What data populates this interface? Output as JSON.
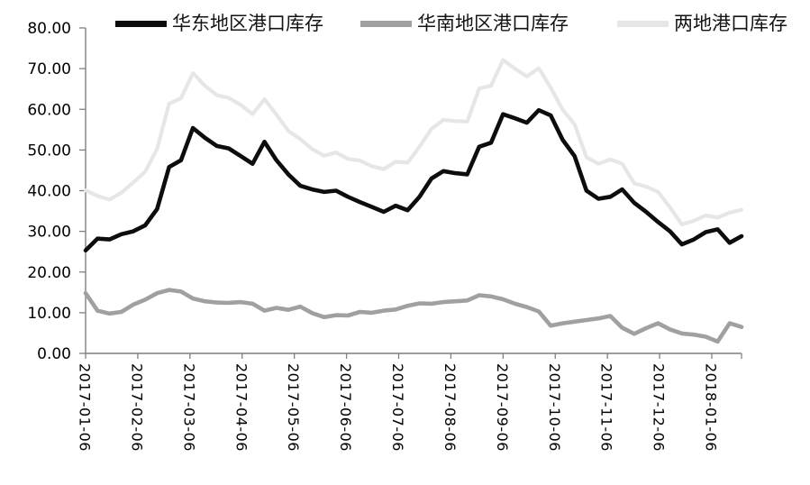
{
  "chart_data": {
    "type": "line",
    "title": "",
    "legend_position": "top",
    "grid": false,
    "axis_color": "#7f7f7f",
    "ylim": [
      0,
      80
    ],
    "y_ticks": [
      0,
      10,
      20,
      30,
      40,
      50,
      60,
      70,
      80
    ],
    "y_tick_decimals": 2,
    "x_labels": [
      "2017-01-06",
      "2017-02-06",
      "2017-03-06",
      "2017-04-06",
      "2017-05-06",
      "2017-06-06",
      "2017-07-06",
      "2017-08-06",
      "2017-09-06",
      "2017-10-06",
      "2017-11-06",
      "2017-12-06",
      "2018-01-06"
    ],
    "x_label_rotation_deg": 90,
    "series": [
      {
        "id": "east-china-inventory",
        "name": "华东地区港口库存",
        "color": "#0d0d0d",
        "line_width": 4.6,
        "values": [
          25.3,
          28.2,
          28.0,
          29.3,
          30.0,
          31.5,
          35.5,
          45.8,
          47.5,
          55.4,
          53.0,
          51.0,
          50.4,
          48.5,
          46.6,
          52.0,
          47.5,
          44.0,
          41.2,
          40.3,
          39.7,
          40.0,
          38.5,
          37.2,
          36.0,
          34.8,
          36.3,
          35.2,
          38.5,
          43.0,
          44.8,
          44.3,
          44.0,
          50.8,
          51.8,
          58.8,
          57.8,
          56.7,
          59.8,
          58.5,
          52.5,
          48.5,
          40.0,
          38.0,
          38.5,
          40.3,
          37.0,
          34.8,
          32.3,
          30.0,
          26.8,
          28.0,
          29.8,
          30.5,
          27.2,
          28.8
        ]
      },
      {
        "id": "south-china-inventory",
        "name": "华南地区港口库存",
        "color": "#a0a0a0",
        "line_width": 4.6,
        "values": [
          14.8,
          10.5,
          9.8,
          10.2,
          12.0,
          13.2,
          14.8,
          15.6,
          15.2,
          13.5,
          12.8,
          12.5,
          12.4,
          12.6,
          12.2,
          10.5,
          11.2,
          10.7,
          11.5,
          9.9,
          8.9,
          9.4,
          9.3,
          10.2,
          10.0,
          10.5,
          10.8,
          11.7,
          12.3,
          12.2,
          12.6,
          12.8,
          13.0,
          14.3,
          14.0,
          13.3,
          12.2,
          11.4,
          10.3,
          6.8,
          7.4,
          7.8,
          8.2,
          8.6,
          9.2,
          6.3,
          4.8,
          6.2,
          7.4,
          5.9,
          4.9,
          4.6,
          4.1,
          2.9,
          7.4,
          6.5
        ]
      },
      {
        "id": "combined-inventory",
        "name": "两地港口库存",
        "color": "#e6e6e6",
        "line_width": 4.2,
        "values": [
          40.1,
          38.7,
          37.8,
          39.5,
          42.0,
          44.7,
          50.3,
          61.4,
          62.7,
          68.9,
          65.8,
          63.5,
          62.8,
          61.1,
          58.8,
          62.5,
          58.7,
          54.7,
          52.7,
          50.2,
          48.6,
          49.4,
          47.8,
          47.4,
          46.0,
          45.3,
          47.1,
          46.9,
          50.8,
          55.2,
          57.4,
          57.1,
          57.0,
          65.1,
          65.8,
          72.1,
          70.0,
          68.1,
          70.1,
          65.3,
          59.9,
          56.3,
          48.2,
          46.6,
          47.7,
          46.6,
          41.8,
          41.0,
          39.7,
          35.9,
          31.7,
          32.6,
          33.9,
          33.4,
          34.6,
          35.3
        ]
      }
    ]
  }
}
